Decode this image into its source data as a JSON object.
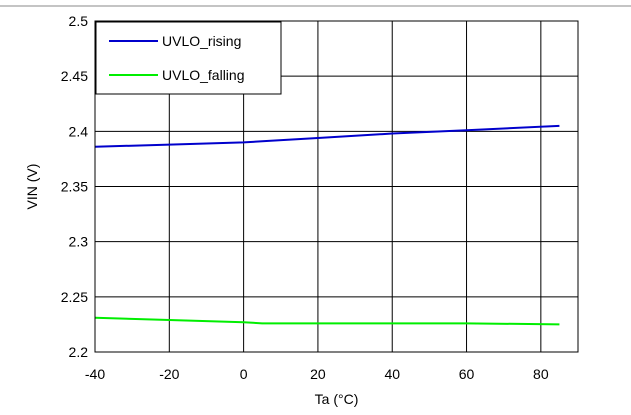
{
  "chart_data": {
    "type": "line",
    "title": "",
    "xlabel": "Ta (°C)",
    "ylabel": "VIN (V)",
    "xlim": [
      -40,
      90
    ],
    "ylim": [
      2.2,
      2.5
    ],
    "xticks": [
      "-40",
      "-20",
      "0",
      "20",
      "40",
      "60",
      "80"
    ],
    "xtick_values": [
      -40,
      -20,
      0,
      20,
      40,
      60,
      80
    ],
    "yticks": [
      "2.2",
      "2.25",
      "2.3",
      "2.35",
      "2.4",
      "2.45",
      "2.5"
    ],
    "ytick_values": [
      2.2,
      2.25,
      2.3,
      2.35,
      2.4,
      2.45,
      2.5
    ],
    "grid": true,
    "legend_position": "top-left",
    "series": [
      {
        "name": "UVLO_rising",
        "color": "#0000cc",
        "x": [
          -40,
          -20,
          0,
          5,
          20,
          40,
          60,
          85
        ],
        "y": [
          2.386,
          2.388,
          2.39,
          2.391,
          2.394,
          2.398,
          2.401,
          2.405
        ]
      },
      {
        "name": "UVLO_falling",
        "color": "#00ee00",
        "x": [
          -40,
          -20,
          0,
          5,
          20,
          40,
          60,
          85
        ],
        "y": [
          2.231,
          2.229,
          2.227,
          2.226,
          2.226,
          2.226,
          2.226,
          2.225
        ]
      }
    ]
  }
}
